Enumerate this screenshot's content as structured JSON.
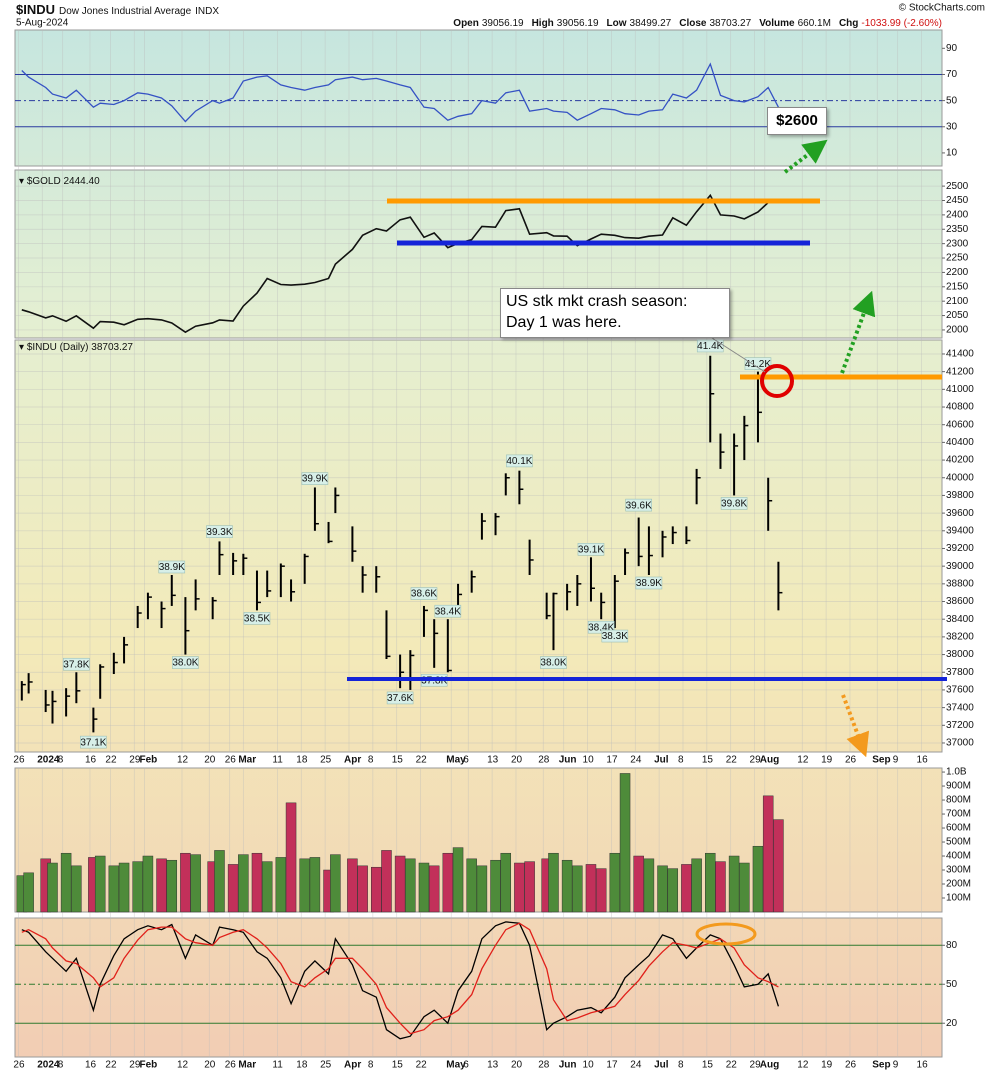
{
  "header": {
    "symbol": "$INDU",
    "name": "Dow Jones Industrial Average",
    "exchange": "INDX",
    "date": "5-Aug-2024",
    "copyright": "© StockCharts.com",
    "quote": [
      {
        "label": "Open",
        "value": "39056.19"
      },
      {
        "label": "High",
        "value": "39056.19"
      },
      {
        "label": "Low",
        "value": "38499.27"
      },
      {
        "label": "Close",
        "value": "38703.27"
      },
      {
        "label": "Volume",
        "value": "660.1M"
      },
      {
        "label": "Chg",
        "value": "-1033.99 (-2.60%)"
      }
    ]
  },
  "annotations": {
    "price_target": "$2600",
    "crash_note": [
      "US stk mkt crash season:",
      "Day 1 was here."
    ]
  },
  "chart_data": [
    {
      "type": "line",
      "series": [
        {
          "color": "#3552c4",
          "values": [
            73,
            68,
            60,
            55,
            52,
            58,
            45,
            48,
            47,
            50,
            56,
            55,
            52,
            46,
            34,
            42,
            50,
            48,
            52,
            65,
            68,
            69,
            62,
            60,
            58,
            60,
            62,
            66,
            68,
            66,
            67,
            65,
            62,
            60,
            45,
            44,
            35,
            38,
            40,
            50,
            48,
            56,
            58,
            42,
            44,
            42,
            41,
            35,
            40,
            44,
            43,
            40,
            39,
            42,
            43,
            55,
            52,
            58,
            78,
            54,
            50,
            49,
            53,
            60,
            45
          ]
        }
      ],
      "ylim": [
        0,
        104
      ],
      "yticks": [
        10,
        30,
        50,
        70,
        90
      ],
      "levels": [
        70,
        50,
        30
      ],
      "level_color": "#2a3aa0"
    },
    {
      "type": "line",
      "label": "$GOLD 2444.40",
      "series": [
        {
          "color": "#111111",
          "values": [
            2070,
            2063,
            2042,
            2049,
            2030,
            2049,
            2006,
            2029,
            2027,
            2018,
            2037,
            2039,
            2035,
            2024,
            1992,
            2013,
            2025,
            2035,
            2031,
            2083,
            2128,
            2179,
            2158,
            2156,
            2159,
            2165,
            2179,
            2229,
            2280,
            2329,
            2352,
            2344,
            2383,
            2392,
            2322,
            2337,
            2286,
            2301,
            2314,
            2360,
            2357,
            2415,
            2421,
            2333,
            2338,
            2327,
            2326,
            2293,
            2316,
            2333,
            2329,
            2321,
            2319,
            2326,
            2330,
            2390,
            2364,
            2411,
            2468,
            2400,
            2396,
            2386,
            2410,
            2443,
            2444.4
          ]
        }
      ],
      "ylim": [
        1972,
        2556
      ],
      "yticks": [
        2000,
        2050,
        2100,
        2150,
        2200,
        2250,
        2300,
        2350,
        2400,
        2450,
        2500
      ],
      "grid": true
    },
    {
      "type": "ohlc",
      "label": "$INDU (Daily) 38703.27",
      "color": "#000000",
      "x": [
        "2023-12-27",
        "2023-12-29",
        "2024-01-03",
        "2024-01-05",
        "2024-01-09",
        "2024-01-12",
        "2024-01-17",
        "2024-01-19",
        "2024-01-23",
        "2024-01-26",
        "2024-01-30",
        "2024-02-02",
        "2024-02-06",
        "2024-02-09",
        "2024-02-13",
        "2024-02-16",
        "2024-02-21",
        "2024-02-23",
        "2024-02-27",
        "2024-03-01",
        "2024-03-05",
        "2024-03-08",
        "2024-03-12",
        "2024-03-15",
        "2024-03-19",
        "2024-03-22",
        "2024-03-26",
        "2024-03-28",
        "2024-04-02",
        "2024-04-05",
        "2024-04-09",
        "2024-04-12",
        "2024-04-16",
        "2024-04-19",
        "2024-04-23",
        "2024-04-26",
        "2024-04-30",
        "2024-05-03",
        "2024-05-07",
        "2024-05-10",
        "2024-05-14",
        "2024-05-17",
        "2024-05-21",
        "2024-05-24",
        "2024-05-29",
        "2024-05-31",
        "2024-06-04",
        "2024-06-07",
        "2024-06-11",
        "2024-06-14",
        "2024-06-18",
        "2024-06-21",
        "2024-06-25",
        "2024-06-28",
        "2024-07-02",
        "2024-07-05",
        "2024-07-09",
        "2024-07-12",
        "2024-07-16",
        "2024-07-19",
        "2024-07-23",
        "2024-07-26",
        "2024-07-30",
        "2024-08-02",
        "2024-08-05"
      ],
      "high": [
        37700,
        37790,
        37600,
        37590,
        37620,
        37800,
        37400,
        37890,
        38020,
        38200,
        38550,
        38700,
        38600,
        38900,
        38650,
        38850,
        38650,
        39280,
        39150,
        39140,
        38950,
        38950,
        39030,
        38850,
        39140,
        39890,
        39500,
        39890,
        39450,
        39000,
        39000,
        38500,
        38000,
        38050,
        38550,
        38400,
        38400,
        38800,
        38950,
        39600,
        39600,
        40050,
        40080,
        39300,
        38700,
        38700,
        38800,
        38900,
        39100,
        38700,
        38900,
        39200,
        39550,
        39450,
        39400,
        39450,
        39450,
        40100,
        41380,
        40500,
        40500,
        40700,
        41200,
        40000,
        39050
      ],
      "low": [
        37480,
        37560,
        37350,
        37220,
        37300,
        37450,
        37120,
        37500,
        37780,
        37900,
        38300,
        38400,
        38300,
        38550,
        38000,
        38500,
        38400,
        38900,
        38900,
        38900,
        38500,
        38650,
        38650,
        38600,
        38800,
        39400,
        39260,
        39600,
        39050,
        38700,
        38700,
        37950,
        37620,
        37600,
        38200,
        37850,
        37800,
        38500,
        38700,
        39300,
        39350,
        39800,
        39700,
        38900,
        38400,
        38050,
        38500,
        38550,
        38600,
        38400,
        38300,
        38900,
        39000,
        38900,
        39100,
        39250,
        39250,
        39700,
        40400,
        40100,
        39800,
        40200,
        40400,
        39400,
        38500
      ],
      "close": [
        37660,
        37690,
        37430,
        37470,
        37530,
        37590,
        37270,
        37860,
        37910,
        38110,
        38470,
        38650,
        38520,
        38670,
        38270,
        38630,
        38610,
        39130,
        39060,
        39090,
        38590,
        38720,
        39000,
        38710,
        39110,
        39480,
        39280,
        39800,
        39170,
        38900,
        38880,
        37980,
        37800,
        37990,
        38500,
        38240,
        37820,
        38680,
        38880,
        39510,
        39560,
        40000,
        39870,
        39070,
        38440,
        38690,
        38710,
        38800,
        38750,
        38590,
        38830,
        39150,
        39110,
        39120,
        39330,
        39380,
        39290,
        40000,
        40950,
        40290,
        40360,
        40590,
        40740,
        39740,
        38700
      ],
      "xlim": [
        "2023-12-25",
        "2024-09-22"
      ],
      "xticks": [
        {
          "value": "2023-12-26",
          "label": "26"
        },
        {
          "value": "2024-01-02",
          "label": "2024"
        },
        {
          "value": "2024-01-08",
          "label": "8"
        },
        {
          "value": "2024-01-16",
          "label": "16"
        },
        {
          "value": "2024-01-22",
          "label": "22"
        },
        {
          "value": "2024-01-29",
          "label": "29"
        },
        {
          "value": "2024-02-01",
          "label": "Feb"
        },
        {
          "value": "2024-02-12",
          "label": "12"
        },
        {
          "value": "2024-02-20",
          "label": "20"
        },
        {
          "value": "2024-02-26",
          "label": "26"
        },
        {
          "value": "2024-03-01",
          "label": "Mar"
        },
        {
          "value": "2024-03-11",
          "label": "11"
        },
        {
          "value": "2024-03-18",
          "label": "18"
        },
        {
          "value": "2024-03-25",
          "label": "25"
        },
        {
          "value": "2024-04-01",
          "label": "Apr"
        },
        {
          "value": "2024-04-08",
          "label": "8"
        },
        {
          "value": "2024-04-15",
          "label": "15"
        },
        {
          "value": "2024-04-22",
          "label": "22"
        },
        {
          "value": "2024-05-01",
          "label": "May"
        },
        {
          "value": "2024-05-06",
          "label": "6"
        },
        {
          "value": "2024-05-13",
          "label": "13"
        },
        {
          "value": "2024-05-20",
          "label": "20"
        },
        {
          "value": "2024-05-28",
          "label": "28"
        },
        {
          "value": "2024-06-03",
          "label": "Jun"
        },
        {
          "value": "2024-06-10",
          "label": "10"
        },
        {
          "value": "2024-06-17",
          "label": "17"
        },
        {
          "value": "2024-06-24",
          "label": "24"
        },
        {
          "value": "2024-07-01",
          "label": "Jul"
        },
        {
          "value": "2024-07-08",
          "label": "8"
        },
        {
          "value": "2024-07-15",
          "label": "15"
        },
        {
          "value": "2024-07-22",
          "label": "22"
        },
        {
          "value": "2024-07-29",
          "label": "29"
        },
        {
          "value": "2024-08-01",
          "label": "Aug"
        },
        {
          "value": "2024-08-12",
          "label": "12"
        },
        {
          "value": "2024-08-19",
          "label": "19"
        },
        {
          "value": "2024-08-26",
          "label": "26"
        },
        {
          "value": "2024-09-03",
          "label": "Sep"
        },
        {
          "value": "2024-09-09",
          "label": "9"
        },
        {
          "value": "2024-09-16",
          "label": "16"
        }
      ],
      "ylim": [
        36898,
        41558
      ],
      "yticks": [
        37000,
        37200,
        37400,
        37600,
        37800,
        38000,
        38200,
        38400,
        38600,
        38800,
        39000,
        39200,
        39400,
        39600,
        39800,
        40000,
        40200,
        40400,
        40600,
        40800,
        41000,
        41200,
        41400
      ],
      "grid": true,
      "peak_labels": [
        {
          "x": "2024-01-12",
          "value": 37800,
          "label": "37.8K"
        },
        {
          "x": "2024-01-17",
          "value": 37100,
          "label": "37.1K"
        },
        {
          "x": "2024-02-09",
          "value": 38900,
          "label": "38.9K"
        },
        {
          "x": "2024-02-13",
          "value": 38000,
          "label": "38.0K"
        },
        {
          "x": "2024-02-23",
          "value": 39300,
          "label": "39.3K"
        },
        {
          "x": "2024-03-05",
          "value": 38500,
          "label": "38.5K"
        },
        {
          "x": "2024-03-22",
          "value": 39900,
          "label": "39.9K"
        },
        {
          "x": "2024-04-23",
          "value": 38600,
          "label": "38.6K"
        },
        {
          "x": "2024-04-30",
          "value": 38400,
          "label": "38.4K"
        },
        {
          "x": "2024-04-16",
          "value": 37600,
          "label": "37.6K"
        },
        {
          "x": "2024-04-26",
          "value": 37800,
          "label": "37.8K"
        },
        {
          "x": "2024-05-21",
          "value": 40100,
          "label": "40.1K"
        },
        {
          "x": "2024-05-31",
          "value": 38000,
          "label": "38.0K"
        },
        {
          "x": "2024-06-11",
          "value": 39100,
          "label": "39.1K"
        },
        {
          "x": "2024-06-14",
          "value": 38400,
          "label": "38.4K"
        },
        {
          "x": "2024-06-18",
          "value": 38300,
          "label": "38.3K"
        },
        {
          "x": "2024-06-25",
          "value": 39600,
          "label": "39.6K"
        },
        {
          "x": "2024-06-28",
          "value": 38900,
          "label": "38.9K"
        },
        {
          "x": "2024-07-16",
          "value": 41400,
          "label": "41.4K"
        },
        {
          "x": "2024-07-23",
          "value": 39800,
          "label": "39.8K"
        },
        {
          "x": "2024-07-30",
          "value": 41200,
          "label": "41.2K"
        }
      ]
    },
    {
      "type": "bar",
      "up_color": "#4e8b3a",
      "down_color": "#c2305a",
      "values": [
        260000000,
        280000000,
        380000000,
        350000000,
        420000000,
        330000000,
        390000000,
        400000000,
        330000000,
        350000000,
        360000000,
        400000000,
        380000000,
        370000000,
        420000000,
        410000000,
        360000000,
        440000000,
        340000000,
        410000000,
        420000000,
        360000000,
        390000000,
        780000000,
        380000000,
        390000000,
        300000000,
        410000000,
        380000000,
        330000000,
        320000000,
        440000000,
        400000000,
        380000000,
        350000000,
        330000000,
        420000000,
        460000000,
        380000000,
        330000000,
        370000000,
        420000000,
        350000000,
        360000000,
        380000000,
        420000000,
        370000000,
        330000000,
        340000000,
        310000000,
        420000000,
        990000000,
        400000000,
        380000000,
        330000000,
        310000000,
        340000000,
        380000000,
        420000000,
        360000000,
        400000000,
        350000000,
        470000000,
        830000000,
        660100000
      ],
      "ylim": [
        0,
        1029000000
      ],
      "yticks": [
        {
          "value": 100000000,
          "label": "100M"
        },
        {
          "value": 200000000,
          "label": "200M"
        },
        {
          "value": 300000000,
          "label": "300M"
        },
        {
          "value": 400000000,
          "label": "400M"
        },
        {
          "value": 500000000,
          "label": "500M"
        },
        {
          "value": 600000000,
          "label": "600M"
        },
        {
          "value": 700000000,
          "label": "700M"
        },
        {
          "value": 800000000,
          "label": "800M"
        },
        {
          "value": 900000000,
          "label": "900M"
        },
        {
          "value": 1000000000,
          "label": "1.0B"
        }
      ]
    },
    {
      "type": "line",
      "series": [
        {
          "color": "#000000",
          "values": [
            92,
            90,
            75,
            70,
            60,
            70,
            30,
            50,
            72,
            85,
            92,
            95,
            92,
            96,
            70,
            88,
            80,
            94,
            92,
            90,
            75,
            70,
            55,
            35,
            60,
            68,
            58,
            85,
            65,
            45,
            40,
            15,
            8,
            10,
            25,
            30,
            20,
            45,
            60,
            85,
            95,
            98,
            97,
            80,
            15,
            20,
            25,
            30,
            32,
            28,
            40,
            55,
            65,
            72,
            88,
            85,
            70,
            78,
            88,
            85,
            65,
            48,
            50,
            58,
            33
          ]
        },
        {
          "color": "#e0201a",
          "values": [
            90,
            92,
            85,
            78,
            68,
            66,
            55,
            48,
            55,
            70,
            84,
            92,
            94,
            94,
            85,
            82,
            80,
            86,
            90,
            92,
            85,
            78,
            66,
            52,
            48,
            55,
            62,
            70,
            70,
            62,
            50,
            32,
            20,
            12,
            15,
            22,
            25,
            30,
            42,
            62,
            80,
            92,
            97,
            92,
            62,
            38,
            22,
            24,
            28,
            30,
            33,
            42,
            53,
            64,
            75,
            82,
            80,
            78,
            82,
            85,
            78,
            65,
            55,
            52,
            48
          ]
        }
      ],
      "ylim": [
        -6,
        101
      ],
      "yticks": [
        20,
        50,
        80
      ],
      "levels": [
        80,
        50,
        20
      ],
      "level_color": "#2f7a2f"
    }
  ]
}
